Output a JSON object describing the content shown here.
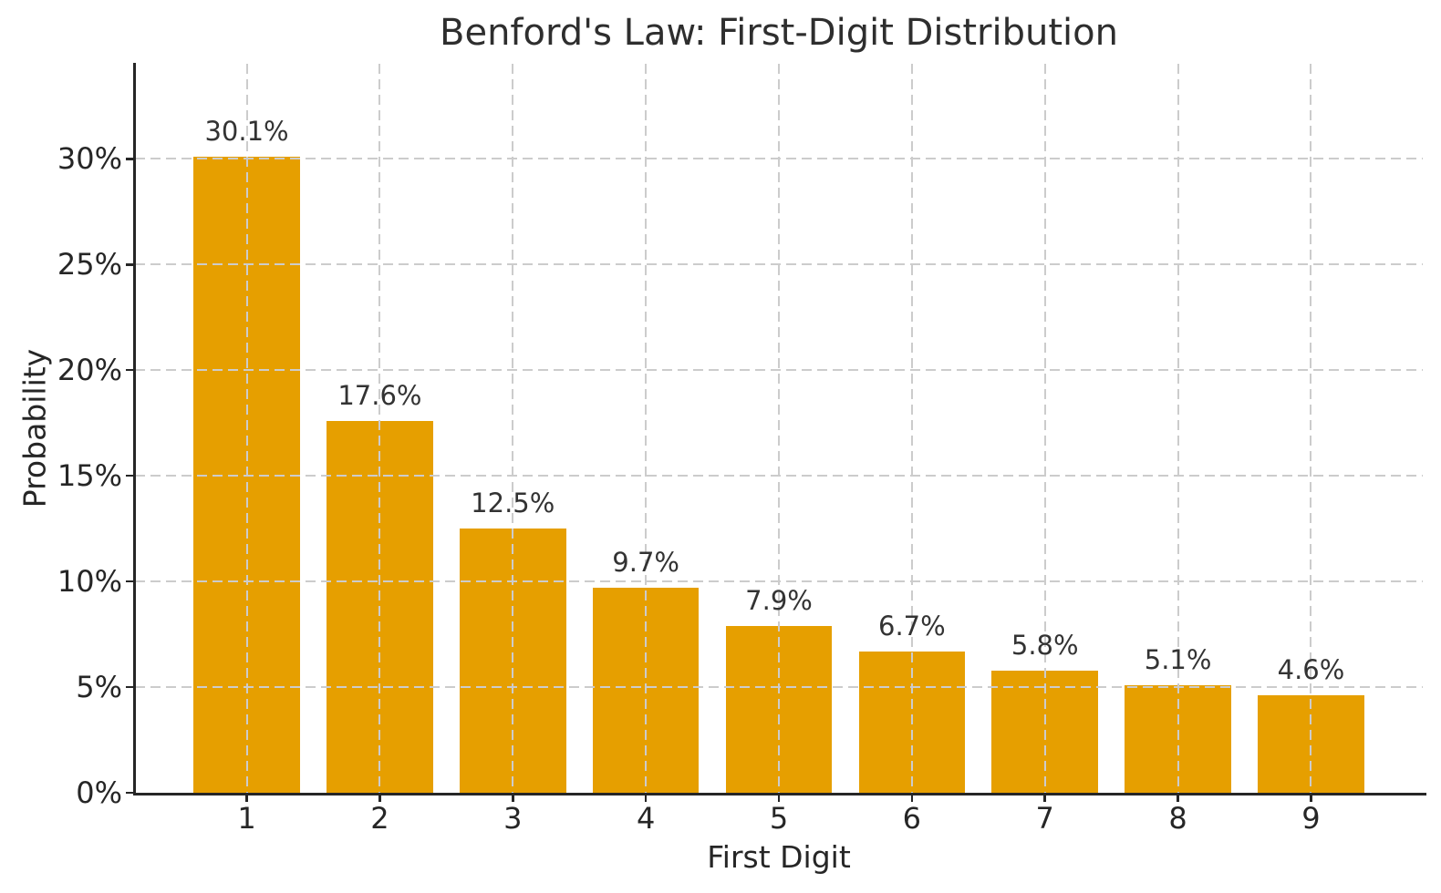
{
  "figure": {
    "background": "#ffffff"
  },
  "chart_data": {
    "type": "bar",
    "title": "Benford's Law: First-Digit Distribution",
    "xlabel": "First Digit",
    "ylabel": "Probability",
    "categories": [
      "1",
      "2",
      "3",
      "4",
      "5",
      "6",
      "7",
      "8",
      "9"
    ],
    "values": [
      30.1,
      17.6,
      12.5,
      9.7,
      7.9,
      6.7,
      5.8,
      5.1,
      4.6
    ],
    "bar_labels": [
      "30.1%",
      "17.6%",
      "12.5%",
      "9.7%",
      "7.9%",
      "6.7%",
      "5.8%",
      "5.1%",
      "4.6%"
    ],
    "yticks": [
      0,
      5,
      10,
      15,
      20,
      25,
      30
    ],
    "ytick_labels": [
      "0%",
      "5%",
      "10%",
      "15%",
      "20%",
      "25%",
      "30%"
    ],
    "ylim": [
      0,
      34.5
    ],
    "grid": true,
    "legend_position": "none",
    "colors": {
      "bar": "#E69F00",
      "grid": "#cccccc",
      "spine": "#262626",
      "tick_text": "#262626",
      "annotation_text": "#333333",
      "title_text": "#2e2e2e"
    }
  }
}
